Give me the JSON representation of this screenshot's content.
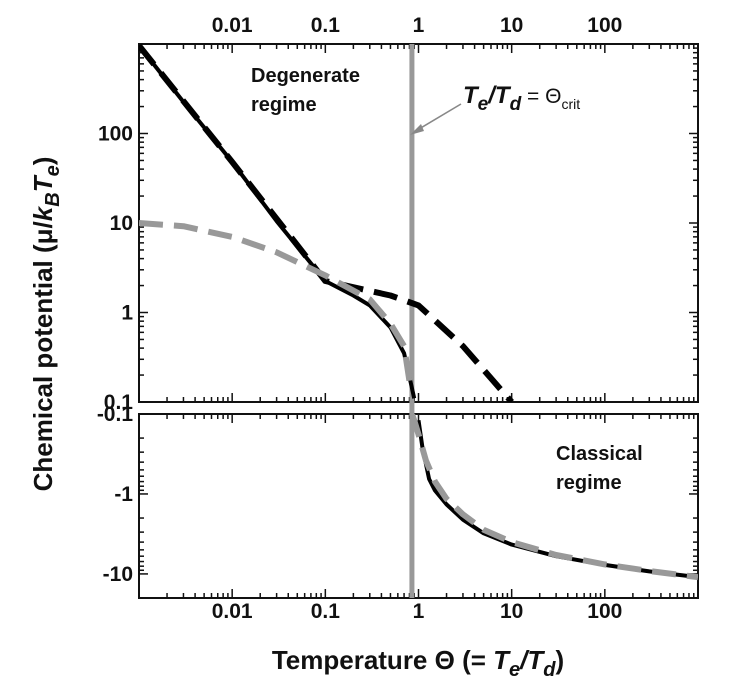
{
  "chart_data": {
    "type": "line",
    "xscale": "log",
    "xlim": [
      0.001,
      1000
    ],
    "x_ticks_bottom": [
      "0.01",
      "0.1",
      "1",
      "10",
      "100"
    ],
    "x_ticks_top": [
      "0.01",
      "0.1",
      "1",
      "10",
      "100"
    ],
    "panels": [
      {
        "name": "degenerate",
        "yscale": "log",
        "ylim": [
          0.1,
          1000
        ],
        "y_ticks": [
          "0.1",
          "1",
          "10",
          "100"
        ],
        "annotation": [
          "Degenerate",
          "regime"
        ]
      },
      {
        "name": "classical",
        "yscale": "symlog-negative",
        "ylim": [
          -0.1,
          -20
        ],
        "y_ticks": [
          "-0.1",
          "-1",
          "-10"
        ],
        "annotation": [
          "Classical",
          "regime"
        ]
      }
    ],
    "xlabel": {
      "prefix": "Temperature Θ (= ",
      "num": "T",
      "num_sub": "e",
      "slash": "/",
      "den": "T",
      "den_sub": "d",
      "suffix": ")"
    },
    "ylabel": {
      "prefix": "Chemical potential (μ/",
      "k": "k",
      "k_sub": "B",
      "t": "T",
      "t_sub": "e",
      "suffix": ")"
    },
    "critical_line": {
      "x": 0.85,
      "color": "#999999",
      "label": {
        "t1": "T",
        "s1": "e",
        "slash": "/",
        "t2": "T",
        "s2": "d",
        "eq": " = Θ",
        "sub": "crit"
      }
    },
    "series": [
      {
        "style": "solid",
        "color": "#000000",
        "points": [
          [
            0.001,
            960
          ],
          [
            0.003,
            225
          ],
          [
            0.01,
            48
          ],
          [
            0.03,
            10.5
          ],
          [
            0.1,
            2.25
          ],
          [
            0.2,
            1.55
          ],
          [
            0.3,
            1.2
          ],
          [
            0.5,
            0.68
          ],
          [
            0.7,
            0.35
          ],
          [
            0.8,
            0.19
          ],
          [
            0.9,
            0.11
          ],
          [
            1.0,
            -0.12
          ],
          [
            1.1,
            -0.26
          ],
          [
            1.3,
            -0.65
          ],
          [
            1.5,
            -0.9
          ],
          [
            2,
            -1.35
          ],
          [
            3,
            -2.1
          ],
          [
            5,
            -3.1
          ],
          [
            10,
            -4.3
          ],
          [
            30,
            -6.0
          ],
          [
            100,
            -7.7
          ],
          [
            300,
            -9.3
          ],
          [
            1000,
            -11.0
          ]
        ]
      },
      {
        "style": "dashed",
        "color": "#000000",
        "points": [
          [
            0.001,
            960
          ],
          [
            0.01,
            48
          ],
          [
            0.1,
            2.25
          ],
          [
            0.5,
            1.55
          ],
          [
            1,
            1.2
          ],
          [
            3,
            0.42
          ],
          [
            10,
            0.1
          ]
        ]
      },
      {
        "style": "dashed",
        "color": "#999999",
        "points": [
          [
            0.001,
            10
          ],
          [
            0.003,
            9.2
          ],
          [
            0.01,
            7.0
          ],
          [
            0.03,
            4.7
          ],
          [
            0.1,
            2.6
          ],
          [
            0.3,
            1.4
          ],
          [
            0.5,
            0.75
          ],
          [
            0.7,
            0.42
          ],
          [
            0.8,
            0.17
          ],
          [
            0.85,
            -0.1
          ],
          [
            0.9,
            -0.12
          ],
          [
            1.0,
            -0.18
          ],
          [
            1.2,
            -0.38
          ],
          [
            1.5,
            -0.7
          ],
          [
            2,
            -1.15
          ],
          [
            3,
            -1.8
          ],
          [
            5,
            -2.8
          ],
          [
            10,
            -4.0
          ],
          [
            30,
            -5.8
          ],
          [
            100,
            -7.6
          ],
          [
            300,
            -9.2
          ],
          [
            1000,
            -11.0
          ]
        ]
      }
    ]
  }
}
